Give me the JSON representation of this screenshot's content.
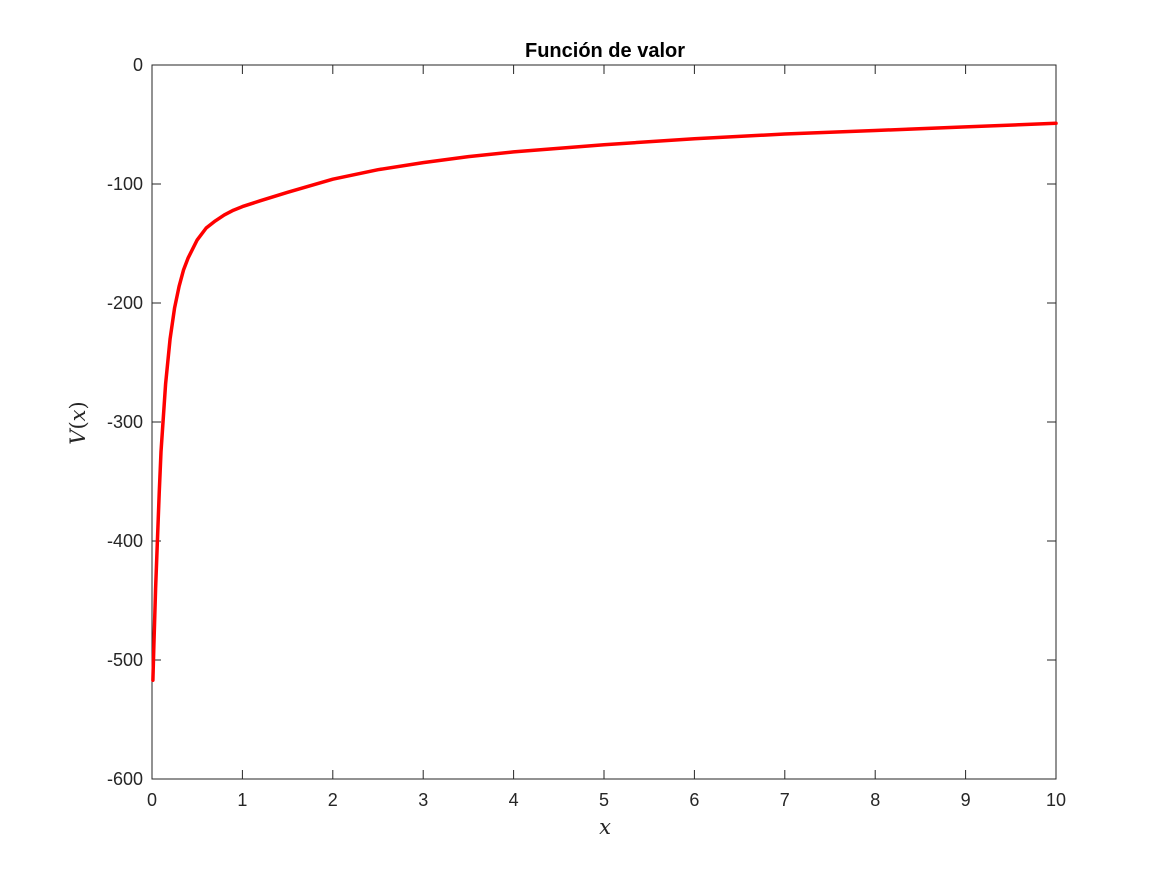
{
  "chart_data": {
    "type": "line",
    "title": "Función de valor",
    "xlabel": "x",
    "ylabel": "V(x)",
    "xlim": [
      0,
      10
    ],
    "ylim": [
      -600,
      0
    ],
    "xticks": [
      0,
      1,
      2,
      3,
      4,
      5,
      6,
      7,
      8,
      9,
      10
    ],
    "yticks": [
      0,
      -100,
      -200,
      -300,
      -400,
      -500,
      -600
    ],
    "grid": false,
    "legend": "none",
    "series": [
      {
        "color": "#ff0000",
        "x": [
          0.01,
          0.02,
          0.04,
          0.06,
          0.08,
          0.1,
          0.15,
          0.2,
          0.25,
          0.3,
          0.35,
          0.4,
          0.5,
          0.6,
          0.7,
          0.8,
          0.9,
          1.0,
          1.2,
          1.5,
          2.0,
          2.5,
          3.0,
          3.5,
          4.0,
          5.0,
          6.0,
          7.0,
          8.0,
          9.0,
          10.0
        ],
        "y": [
          -517,
          -490,
          -440,
          -400,
          -360,
          -325,
          -268,
          -230,
          -204,
          -186,
          -172,
          -162,
          -147,
          -137,
          -131,
          -126,
          -122,
          -119,
          -114,
          -107,
          -96,
          -88,
          -82,
          -77,
          -73,
          -67,
          -62,
          -58,
          -55,
          -52,
          -49
        ]
      }
    ]
  }
}
